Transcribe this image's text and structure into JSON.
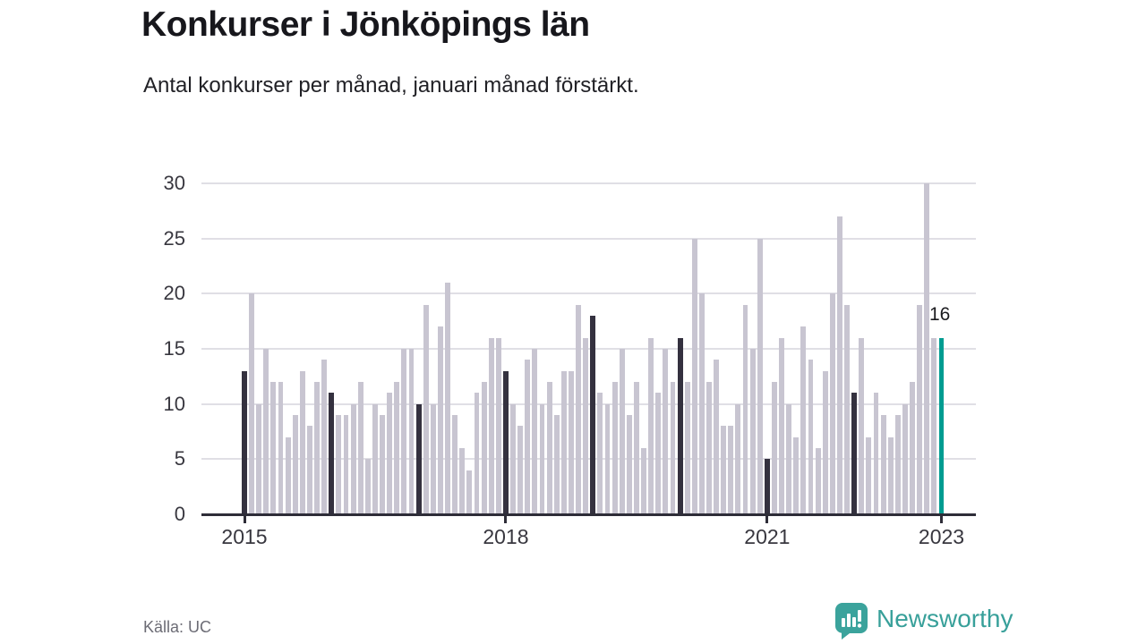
{
  "title": "Konkurser i Jönköpings län",
  "subtitle": "Antal konkurser per månad, januari månad förstärkt.",
  "source": "Källa: UC",
  "brand": {
    "name": "Newsworthy"
  },
  "annotation": {
    "value": "16"
  },
  "colors": {
    "bar_default": "#c8c5d1",
    "bar_january": "#34313f",
    "bar_highlight": "#009c91",
    "grid": "#e0dfe5",
    "axis": "#2e2d38",
    "brand_teal": "#3ba39c"
  },
  "chart_data": {
    "type": "bar",
    "title": "Konkurser i Jönköpings län",
    "subtitle": "Antal konkurser per månad, januari månad förstärkt.",
    "xlabel": "",
    "ylabel": "",
    "ylim": [
      0,
      30
    ],
    "grid": true,
    "start_month": "2015-01",
    "end_month": "2023-01",
    "y_ticks": [
      0,
      5,
      10,
      15,
      20,
      25,
      30
    ],
    "x_ticks": [
      {
        "label": "2015",
        "month_index": 0
      },
      {
        "label": "2018",
        "month_index": 36
      },
      {
        "label": "2021",
        "month_index": 72
      },
      {
        "label": "2023",
        "month_index": 96
      }
    ],
    "emphasis": "january bars dark, last bar (jan 2023) teal with value label 16",
    "series": [
      {
        "name": "Antal konkurser per månad",
        "values": [
          13,
          20,
          10,
          15,
          12,
          12,
          7,
          9,
          13,
          8,
          12,
          14,
          11,
          9,
          9,
          10,
          12,
          5,
          10,
          9,
          11,
          12,
          15,
          15,
          10,
          19,
          10,
          17,
          21,
          9,
          6,
          4,
          11,
          12,
          16,
          16,
          13,
          10,
          8,
          14,
          15,
          10,
          12,
          9,
          13,
          13,
          19,
          16,
          18,
          11,
          10,
          12,
          15,
          9,
          12,
          6,
          16,
          11,
          15,
          12,
          16,
          12,
          25,
          20,
          12,
          14,
          8,
          8,
          10,
          19,
          15,
          25,
          5,
          12,
          16,
          10,
          7,
          17,
          14,
          6,
          13,
          20,
          27,
          19,
          11,
          16,
          7,
          11,
          9,
          7,
          9,
          10,
          12,
          19,
          30,
          16,
          16
        ]
      }
    ]
  }
}
